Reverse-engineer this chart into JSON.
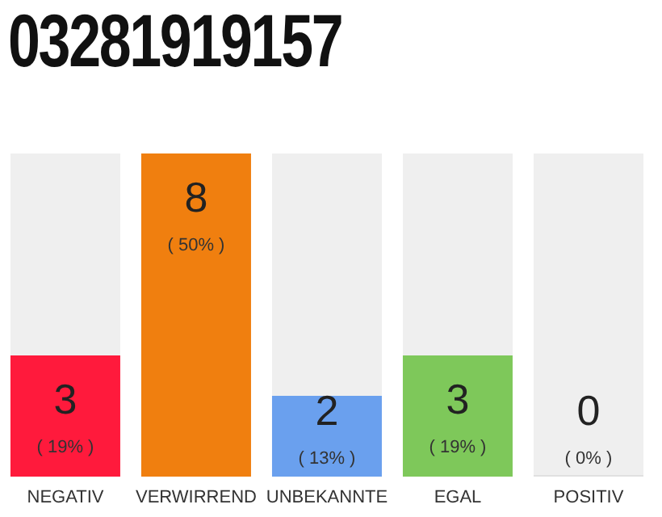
{
  "chart_data": {
    "type": "bar",
    "title": "03281919157",
    "categories": [
      "NEGATIV",
      "VERWIRREND",
      "UNBEKANNTE",
      "EGAL",
      "POSITIV"
    ],
    "values": [
      3,
      8,
      2,
      3,
      0
    ],
    "colors": [
      "#ff1a3c",
      "#f07f0f",
      "#6aa0ee",
      "#7ec85a",
      "#e0e0e0"
    ],
    "ylim": [
      0,
      8
    ],
    "data_labels": true,
    "annotations": [
      "( 19% )",
      "( 50% )",
      "( 13% )",
      "( 19% )",
      "( 0% )"
    ]
  }
}
